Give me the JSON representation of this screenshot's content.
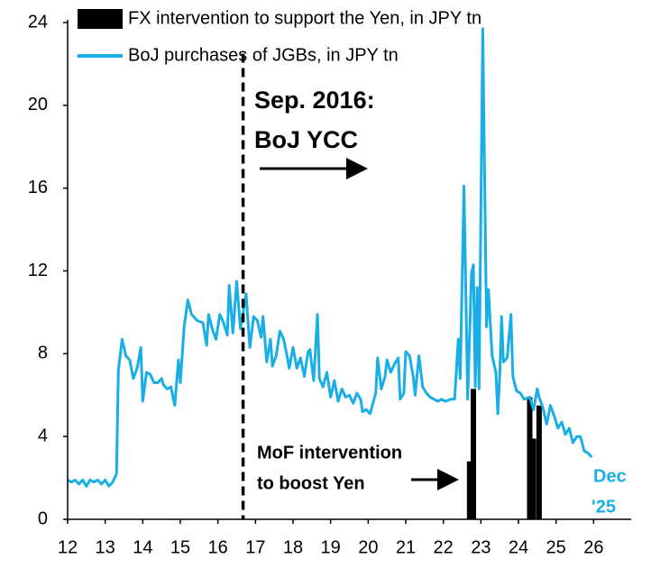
{
  "chart_data": {
    "type": "combo",
    "series": [
      {
        "name": "FX intervention to support the Yen, in JPY tn",
        "type": "bar",
        "color": "#000000",
        "x": [
          22.7,
          22.8,
          24.3,
          24.4,
          24.55
        ],
        "values": [
          2.8,
          6.3,
          5.9,
          3.9,
          5.5
        ]
      },
      {
        "name": "BoJ purchases of JGBs, in JPY tn",
        "type": "line",
        "color": "#1aaee6",
        "x": [
          12.0,
          12.1,
          12.2,
          12.3,
          12.4,
          12.5,
          12.6,
          12.7,
          12.8,
          12.9,
          13.0,
          13.1,
          13.2,
          13.3,
          13.35,
          13.45,
          13.55,
          13.65,
          13.75,
          13.85,
          13.95,
          14.0,
          14.1,
          14.2,
          14.3,
          14.4,
          14.5,
          14.55,
          14.65,
          14.75,
          14.85,
          14.95,
          15.0,
          15.1,
          15.2,
          15.3,
          15.45,
          15.6,
          15.7,
          15.75,
          15.85,
          15.95,
          16.05,
          16.15,
          16.25,
          16.3,
          16.4,
          16.5,
          16.6,
          16.75,
          16.85,
          16.95,
          17.05,
          17.15,
          17.2,
          17.3,
          17.4,
          17.45,
          17.55,
          17.65,
          17.75,
          17.85,
          17.9,
          18.0,
          18.1,
          18.2,
          18.3,
          18.4,
          18.45,
          18.55,
          18.65,
          18.7,
          18.8,
          18.9,
          19.0,
          19.1,
          19.2,
          19.3,
          19.4,
          19.5,
          19.6,
          19.7,
          19.8,
          19.85,
          19.95,
          20.05,
          20.2,
          20.25,
          20.35,
          20.45,
          20.5,
          20.6,
          20.7,
          20.8,
          20.85,
          20.95,
          21.0,
          21.1,
          21.2,
          21.25,
          21.35,
          21.45,
          21.55,
          21.65,
          21.75,
          21.85,
          21.95,
          22.05,
          22.2,
          22.3,
          22.4,
          22.45,
          22.55,
          22.65,
          22.75,
          22.8,
          22.85,
          22.9,
          22.95,
          23.05,
          23.15,
          23.2,
          23.3,
          23.4,
          23.45,
          23.5,
          23.55,
          23.6,
          23.7,
          23.8,
          23.85,
          23.95,
          24.05,
          24.15,
          24.3,
          24.4,
          24.5,
          24.55,
          24.65,
          24.75,
          24.85,
          24.95,
          25.05,
          25.15,
          25.25,
          25.35,
          25.45,
          25.55,
          25.65,
          25.75,
          25.85,
          25.95
        ],
        "values": [
          1.9,
          1.8,
          1.9,
          1.7,
          1.9,
          1.6,
          1.9,
          1.8,
          1.9,
          1.7,
          1.9,
          1.6,
          1.8,
          2.2,
          7.2,
          8.7,
          7.9,
          7.7,
          6.8,
          7.3,
          8.3,
          5.7,
          7.1,
          7.0,
          6.6,
          6.6,
          6.8,
          6.5,
          6.3,
          6.4,
          5.5,
          7.7,
          6.6,
          9.3,
          10.6,
          9.9,
          9.6,
          9.5,
          8.4,
          9.9,
          9.2,
          8.7,
          9.9,
          9.5,
          8.9,
          11.3,
          9.0,
          11.5,
          9.2,
          10.9,
          8.3,
          9.8,
          9.6,
          8.8,
          9.8,
          7.6,
          8.7,
          7.4,
          7.9,
          9.1,
          8.7,
          7.8,
          7.3,
          8.3,
          7.3,
          7.8,
          6.9,
          8.1,
          8.2,
          6.7,
          9.9,
          6.8,
          6.4,
          7.1,
          5.9,
          6.7,
          5.7,
          6.3,
          5.9,
          6.0,
          5.6,
          6.1,
          5.8,
          5.2,
          5.3,
          5.1,
          6.1,
          7.8,
          6.3,
          6.9,
          7.7,
          7.1,
          7.5,
          7.8,
          5.8,
          6.1,
          8.1,
          7.9,
          6.9,
          6.0,
          7.9,
          6.4,
          6.1,
          5.9,
          5.8,
          5.7,
          5.8,
          5.7,
          5.8,
          5.8,
          8.7,
          6.8,
          16.1,
          5.8,
          11.9,
          12.3,
          6.4,
          11.2,
          6.3,
          23.7,
          9.3,
          11.1,
          7.9,
          7.1,
          5.1,
          6.9,
          9.8,
          7.6,
          7.8,
          9.9,
          6.9,
          6.2,
          6.1,
          5.8,
          5.9,
          5.3,
          6.3,
          5.9,
          5.4,
          4.6,
          5.5,
          5.0,
          4.4,
          4.7,
          4.1,
          4.4,
          3.7,
          4.0,
          4.0,
          3.3,
          3.2,
          3.0
        ]
      }
    ],
    "xlim": [
      12,
      27
    ],
    "xticks": [
      12,
      13,
      14,
      15,
      16,
      17,
      18,
      19,
      20,
      21,
      22,
      23,
      24,
      25,
      26
    ],
    "ylim": [
      0,
      24
    ],
    "yticks": [
      0,
      4,
      8,
      12,
      16,
      20,
      24
    ],
    "event_x": 16.67,
    "annotations": [
      "Sep. 2016:",
      "BoJ YCC",
      "MoF intervention",
      "to boost Yen",
      "Dec",
      "'25"
    ]
  }
}
